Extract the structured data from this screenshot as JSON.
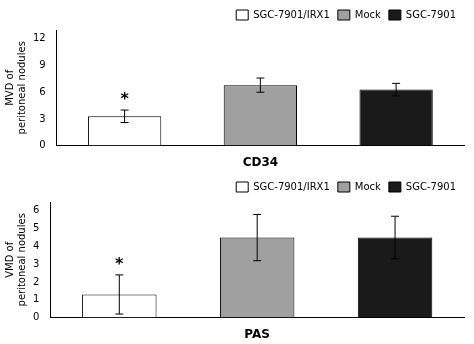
{
  "chart_data": [
    {
      "type": "bar",
      "categories": [
        "SGC-7901/IRX1",
        "Mock",
        "SGC-7901"
      ],
      "values": [
        3.3,
        6.8,
        6.3
      ],
      "errors": [
        0.7,
        0.8,
        0.7
      ],
      "colors": [
        "white",
        "#a0a0a0",
        "#1a1a1a"
      ],
      "xlabel": "CD34",
      "ylabel": "MVD of\nperitoneal nodules",
      "ylim": [
        0,
        13
      ],
      "yticks": [
        0,
        3,
        6,
        9,
        12
      ],
      "grid": false,
      "legend": "upper right",
      "tick_labels": "y",
      "annotations": [
        {
          "text": "*",
          "category": "SGC-7901/IRX1"
        }
      ]
    },
    {
      "type": "bar",
      "categories": [
        "SGC-7901/IRX1",
        "Mock",
        "SGC-7901"
      ],
      "values": [
        1.3,
        4.5,
        4.5
      ],
      "errors": [
        1.1,
        1.3,
        1.2
      ],
      "colors": [
        "white",
        "#a0a0a0",
        "#1a1a1a"
      ],
      "xlabel": "PAS",
      "ylabel": "VMD of\nperitoneal nodules",
      "ylim": [
        0,
        6.5
      ],
      "yticks": [
        0,
        1,
        2,
        3,
        4,
        5,
        6
      ],
      "grid": false,
      "legend": "upper right",
      "tick_labels": "y",
      "annotations": [
        {
          "text": "*",
          "category": "SGC-7901/IRX1"
        }
      ]
    }
  ]
}
